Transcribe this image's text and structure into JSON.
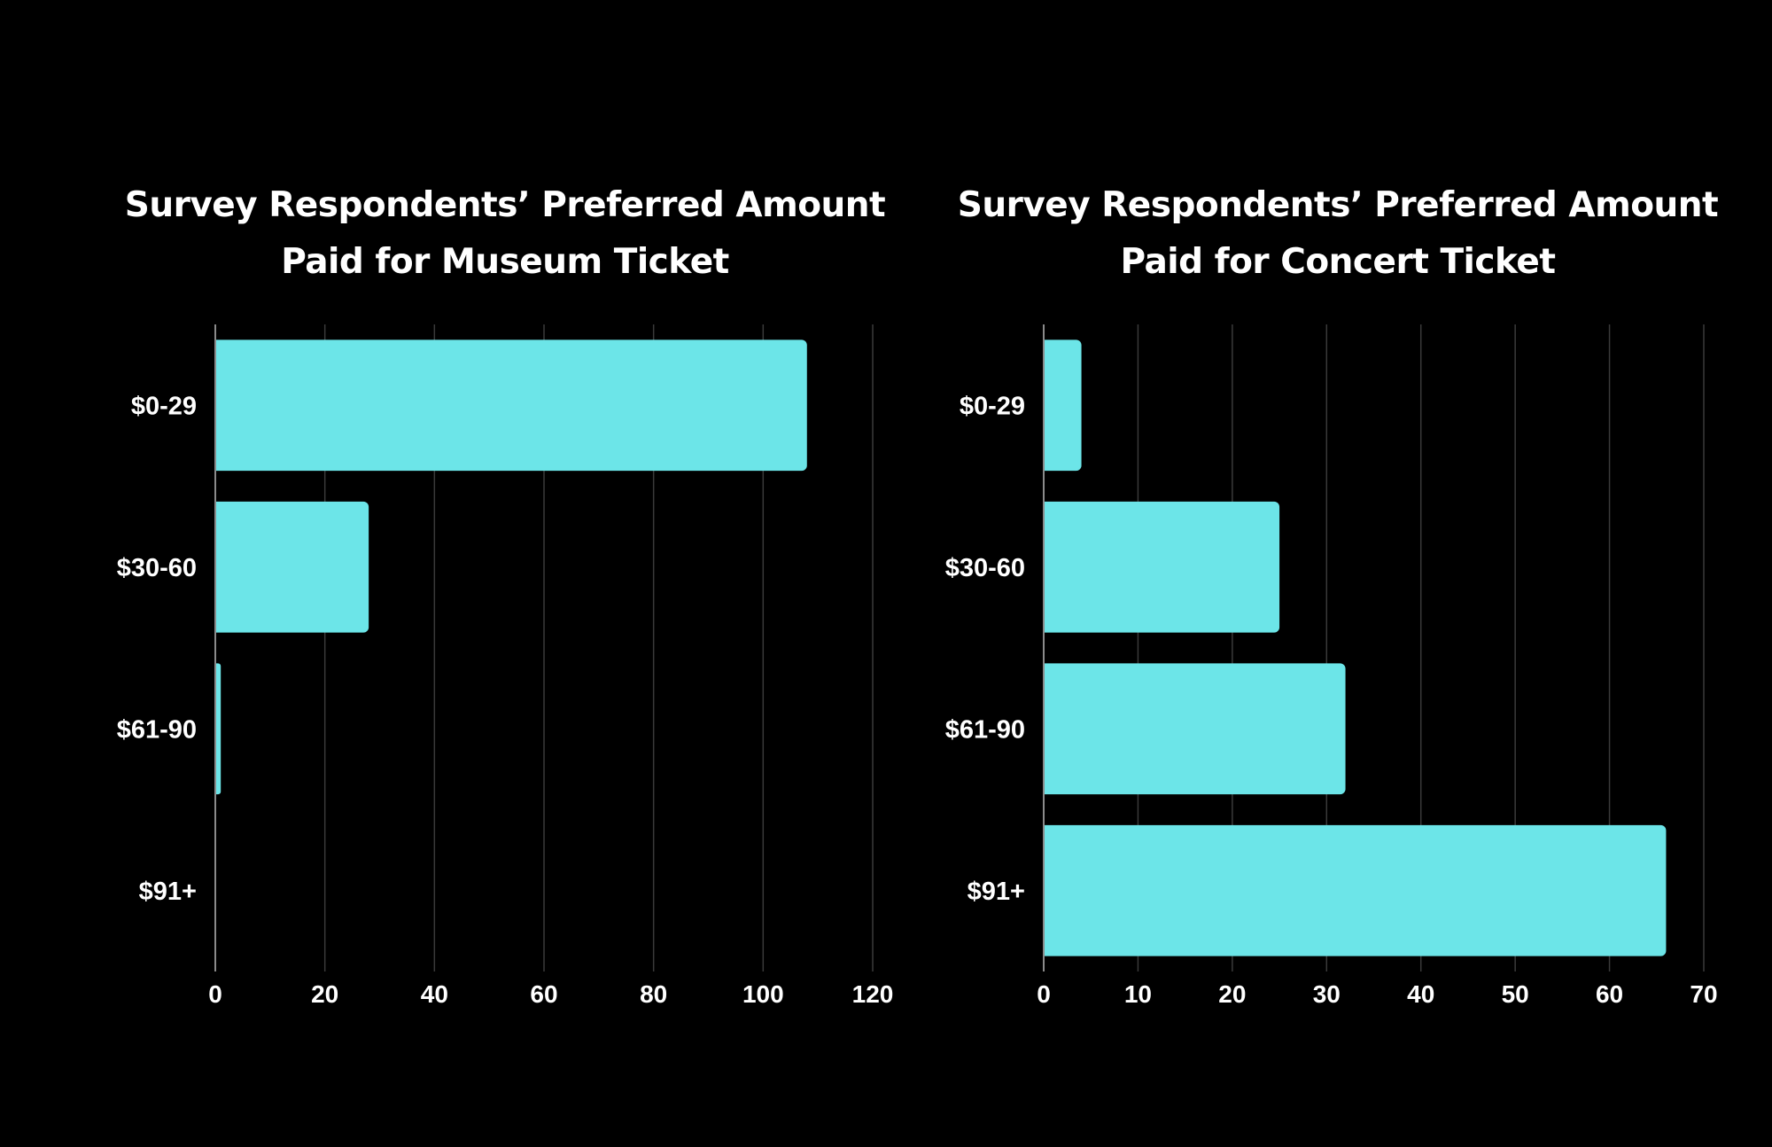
{
  "colors": {
    "background": "#000000",
    "bar": "#6ce5e8",
    "grid": "#3a3a3a",
    "axis": "#8a8a8a",
    "text": "#ffffff"
  },
  "chart_data": [
    {
      "type": "bar",
      "orientation": "horizontal",
      "title": [
        "Survey Respondents’ Preferred Amount",
        "Paid for Museum Ticket"
      ],
      "categories": [
        "$0-29",
        "$30-60",
        "$61-90",
        "$91+"
      ],
      "values": [
        108,
        28,
        1,
        0
      ],
      "xlim": [
        0,
        120
      ],
      "xticks": [
        0,
        20,
        40,
        60,
        80,
        100,
        120
      ],
      "grid": true,
      "xlabel": "",
      "ylabel": ""
    },
    {
      "type": "bar",
      "orientation": "horizontal",
      "title": [
        "Survey Respondents’ Preferred Amount",
        "Paid for Concert Ticket"
      ],
      "categories": [
        "$0-29",
        "$30-60",
        "$61-90",
        "$91+"
      ],
      "values": [
        4,
        25,
        32,
        66
      ],
      "xlim": [
        0,
        70
      ],
      "xticks": [
        0,
        10,
        20,
        30,
        40,
        50,
        60,
        70
      ],
      "grid": true,
      "xlabel": "",
      "ylabel": ""
    }
  ]
}
